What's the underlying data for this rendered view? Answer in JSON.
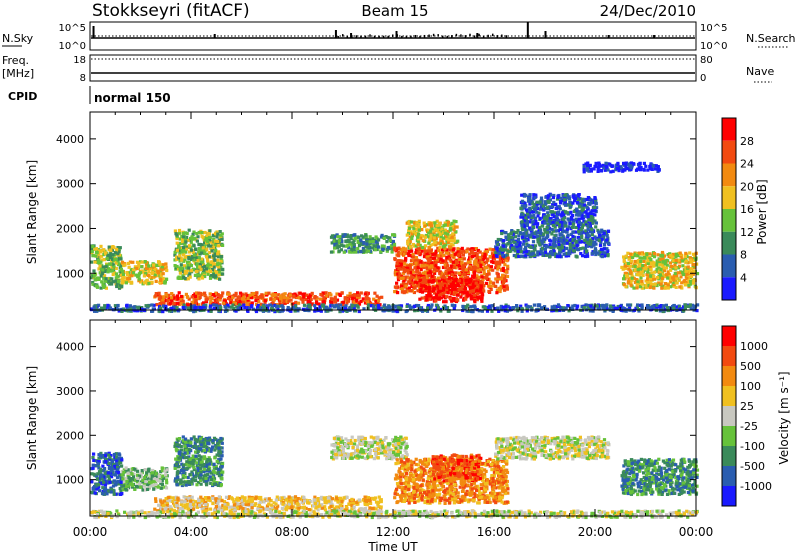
{
  "header": {
    "station": "Stokkseyri (fitACF)",
    "beam": "Beam 15",
    "date": "24/Dec/2010"
  },
  "strip": {
    "nsky_label": "N.Sky",
    "nsearch_label": "N.Search",
    "freq_label": "Freq.",
    "freq_unit": "[MHz]",
    "nave_label": "Nave",
    "cpid_label": "CPID",
    "cpid_value": "normal 150",
    "noise_ticks": [
      "10^5",
      "10^0"
    ],
    "freq_ticks": [
      "18",
      "8"
    ],
    "nave_ticks": [
      "80",
      "0"
    ]
  },
  "chart_data": [
    {
      "type": "heatmap",
      "name": "power",
      "ylabel": "Slant Range [km]",
      "colorbar_label": "Power [dB]",
      "yticks": [
        "1000",
        "2000",
        "3000",
        "4000"
      ],
      "ylim": [
        180,
        4600
      ],
      "colorbar_ticks": [
        "4",
        "8",
        "12",
        "16",
        "20",
        "24",
        "28"
      ],
      "colorbar_colors": [
        "#1a1aff",
        "#2a5db0",
        "#3a8a5a",
        "#66c23a",
        "#f0c020",
        "#f28a10",
        "#f24a10",
        "#ff0000"
      ],
      "regions": [
        {
          "t0": 0.0,
          "t1": 1.2,
          "r0": 700,
          "r1": 1650,
          "c": 3
        },
        {
          "t0": 1.2,
          "t1": 3.0,
          "r0": 800,
          "r1": 1300,
          "c": 4
        },
        {
          "t0": 3.3,
          "t1": 5.2,
          "r0": 900,
          "r1": 2000,
          "c": 3
        },
        {
          "t0": 2.5,
          "t1": 11.5,
          "r0": 330,
          "r1": 600,
          "c": 6
        },
        {
          "t0": 9.5,
          "t1": 12.0,
          "r0": 1500,
          "r1": 1900,
          "c": 2
        },
        {
          "t0": 12.0,
          "t1": 16.5,
          "r0": 600,
          "r1": 1600,
          "c": 6
        },
        {
          "t0": 13.0,
          "t1": 15.5,
          "r0": 400,
          "r1": 900,
          "c": 7
        },
        {
          "t0": 12.5,
          "t1": 14.5,
          "r0": 1600,
          "r1": 2200,
          "c": 4
        },
        {
          "t0": 16.0,
          "t1": 20.5,
          "r0": 1400,
          "r1": 2000,
          "c": 1
        },
        {
          "t0": 17.0,
          "t1": 20.0,
          "r0": 2000,
          "r1": 2800,
          "c": 1
        },
        {
          "t0": 19.5,
          "t1": 22.5,
          "r0": 3300,
          "r1": 3500,
          "c": 0
        },
        {
          "t0": 21.0,
          "t1": 24.0,
          "r0": 700,
          "r1": 1500,
          "c": 4
        },
        {
          "t0": 0.0,
          "t1": 24.0,
          "r0": 180,
          "r1": 330,
          "c": 1
        }
      ],
      "shared_x": {
        "xlabel": "Time UT",
        "xticks": [
          "00:00",
          "04:00",
          "08:00",
          "12:00",
          "16:00",
          "20:00",
          "00:00"
        ],
        "xlim_hours": [
          0,
          24
        ]
      }
    },
    {
      "type": "heatmap",
      "name": "velocity",
      "ylabel": "Slant Range [km]",
      "colorbar_label": "Velocity [m s⁻¹]",
      "yticks": [
        "1000",
        "2000",
        "3000",
        "4000"
      ],
      "ylim": [
        180,
        4600
      ],
      "colorbar_ticks": [
        "1000",
        "500",
        "100",
        "25",
        "-25",
        "-100",
        "-500",
        "-1000"
      ],
      "colorbar_colors": [
        "#1a1aff",
        "#2a5db0",
        "#3a8a5a",
        "#66c23a",
        "#c8c8c0",
        "#f0c020",
        "#f28a10",
        "#f24a10",
        "#ff0000"
      ],
      "regions": [
        {
          "t0": 0.0,
          "t1": 1.2,
          "r0": 700,
          "r1": 1650,
          "c": 1
        },
        {
          "t0": 1.2,
          "t1": 3.0,
          "r0": 800,
          "r1": 1300,
          "c": 3
        },
        {
          "t0": 3.3,
          "t1": 5.2,
          "r0": 900,
          "r1": 2000,
          "c": 2
        },
        {
          "t0": 2.5,
          "t1": 11.5,
          "r0": 330,
          "r1": 650,
          "c": 5
        },
        {
          "t0": 9.5,
          "t1": 12.5,
          "r0": 1500,
          "r1": 2000,
          "c": 4
        },
        {
          "t0": 12.0,
          "t1": 16.5,
          "r0": 500,
          "r1": 1500,
          "c": 6
        },
        {
          "t0": 13.5,
          "t1": 15.5,
          "r0": 1000,
          "r1": 1600,
          "c": 7
        },
        {
          "t0": 16.0,
          "t1": 20.5,
          "r0": 1500,
          "r1": 2000,
          "c": 4
        },
        {
          "t0": 21.0,
          "t1": 24.0,
          "r0": 700,
          "r1": 1500,
          "c": 2
        },
        {
          "t0": 0.0,
          "t1": 24.0,
          "r0": 180,
          "r1": 330,
          "c": 4
        }
      ]
    }
  ]
}
